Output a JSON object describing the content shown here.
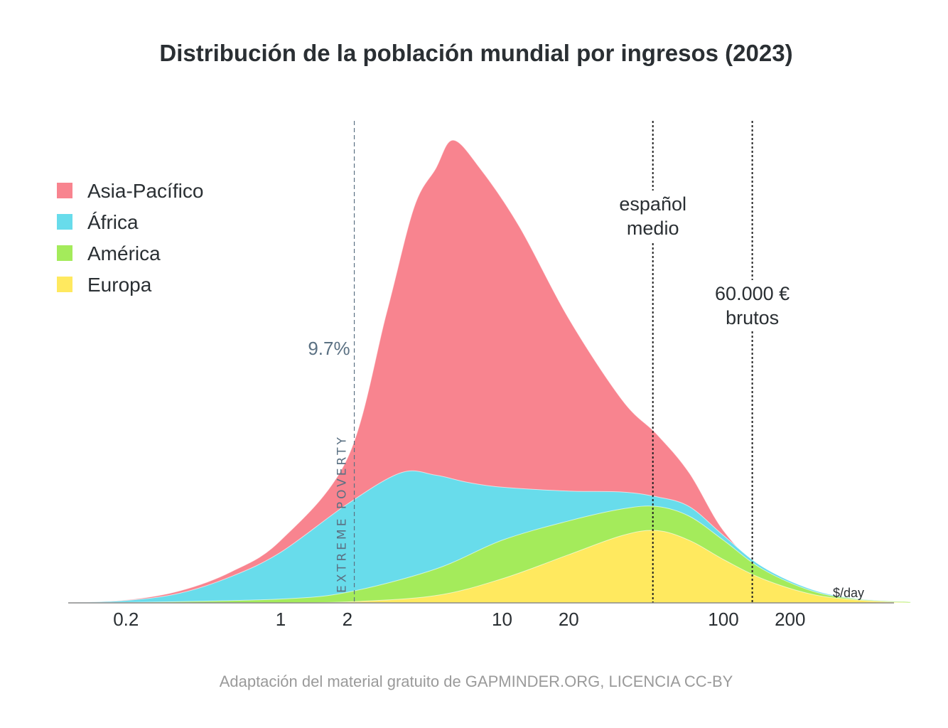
{
  "chart_data": {
    "type": "area",
    "stacked": true,
    "title": "Distribución de la población mundial por ingresos (2023)",
    "x_scale": "log",
    "xlim": [
      0.1,
      700
    ],
    "x_unit_label": "$/day",
    "x_ticks": [
      {
        "value": 0.2,
        "label": "0.2"
      },
      {
        "value": 1,
        "label": "1"
      },
      {
        "value": 2,
        "label": "2"
      },
      {
        "value": 10,
        "label": "10"
      },
      {
        "value": 20,
        "label": "20"
      },
      {
        "value": 100,
        "label": "100"
      },
      {
        "value": 200,
        "label": "200"
      }
    ],
    "ylim": [
      0,
      100
    ],
    "legend_position": "top-left",
    "series": [
      {
        "name": "Europa",
        "color": "#FFE95F",
        "points": [
          [
            0.1,
            0
          ],
          [
            0.3,
            0
          ],
          [
            1,
            0
          ],
          [
            2,
            0.2
          ],
          [
            5,
            1.5
          ],
          [
            10,
            5
          ],
          [
            20,
            10
          ],
          [
            35,
            14
          ],
          [
            50,
            15
          ],
          [
            70,
            13
          ],
          [
            100,
            9
          ],
          [
            150,
            5
          ],
          [
            250,
            1.8
          ],
          [
            400,
            0.6
          ],
          [
            700,
            0
          ]
        ]
      },
      {
        "name": "América",
        "color": "#A4EB5B",
        "points": [
          [
            0.1,
            0
          ],
          [
            0.3,
            0.2
          ],
          [
            1,
            0.8
          ],
          [
            2,
            2.2
          ],
          [
            5,
            7
          ],
          [
            10,
            13
          ],
          [
            20,
            17
          ],
          [
            35,
            19.5
          ],
          [
            50,
            20
          ],
          [
            70,
            18
          ],
          [
            100,
            13
          ],
          [
            150,
            7
          ],
          [
            250,
            2.5
          ],
          [
            400,
            0.8
          ],
          [
            700,
            0.2
          ]
        ]
      },
      {
        "name": "África",
        "color": "#68DCEB",
        "points": [
          [
            0.1,
            0
          ],
          [
            0.2,
            0.5
          ],
          [
            0.35,
            2
          ],
          [
            0.6,
            5.5
          ],
          [
            1,
            10.5
          ],
          [
            2,
            20.5
          ],
          [
            3.5,
            27
          ],
          [
            5,
            26.5
          ],
          [
            7,
            25
          ],
          [
            10,
            24
          ],
          [
            20,
            23.2
          ],
          [
            35,
            23
          ],
          [
            50,
            22
          ],
          [
            70,
            20
          ],
          [
            100,
            14
          ],
          [
            150,
            7.5
          ],
          [
            250,
            2.8
          ],
          [
            400,
            0.9
          ],
          [
            700,
            0.2
          ]
        ]
      },
      {
        "name": "Asia-Pacífico",
        "color": "#F8848F",
        "points": [
          [
            0.1,
            0
          ],
          [
            0.2,
            0.6
          ],
          [
            0.35,
            2.5
          ],
          [
            0.6,
            6.5
          ],
          [
            1,
            13
          ],
          [
            2,
            30
          ],
          [
            3,
            60
          ],
          [
            4,
            82
          ],
          [
            5,
            90
          ],
          [
            6,
            96
          ],
          [
            8,
            90
          ],
          [
            12,
            78
          ],
          [
            20,
            59
          ],
          [
            35,
            42
          ],
          [
            50,
            35
          ],
          [
            70,
            27
          ],
          [
            100,
            15
          ],
          [
            150,
            7
          ],
          [
            250,
            2.5
          ],
          [
            400,
            0.8
          ],
          [
            700,
            0.2
          ]
        ]
      }
    ],
    "reference_lines": [
      {
        "x": 2.15,
        "style": "dashed",
        "color": "#5b7183",
        "label_rotated": "EXTREME POVERTY",
        "value_label": "9.7%"
      },
      {
        "x": 48,
        "style": "dotted",
        "color": "#222222",
        "label_lines": [
          "español",
          "medio"
        ]
      },
      {
        "x": 135,
        "style": "dotted",
        "color": "#222222",
        "label_lines": [
          "60.000 €",
          "brutos"
        ]
      }
    ]
  },
  "source_text": "Adaptación del material gratuito de GAPMINDER.ORG, LICENCIA CC-BY"
}
